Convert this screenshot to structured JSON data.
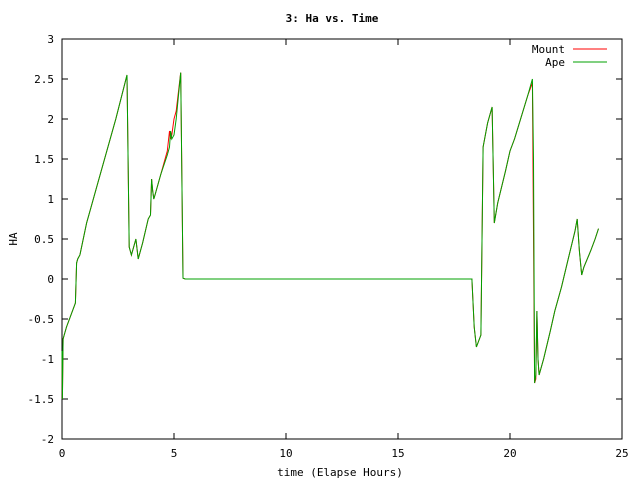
{
  "chart_data": {
    "type": "line",
    "title": "3: Ha vs. Time",
    "xlabel": "time (Elapse Hours)",
    "ylabel": "HA",
    "xlim": [
      0,
      25
    ],
    "ylim": [
      -2,
      3
    ],
    "xticks": [
      0,
      5,
      10,
      15,
      20,
      25
    ],
    "xtick_labels": [
      "0",
      "5",
      "10",
      "15",
      "20",
      "25"
    ],
    "yticks": [
      -2,
      -1.5,
      -1,
      -0.5,
      0,
      0.5,
      1,
      1.5,
      2,
      2.5,
      3
    ],
    "ytick_labels": [
      "-2",
      "-1.5",
      "-1",
      "-0.5",
      "0",
      "0.5",
      "1",
      "1.5",
      "2",
      "2.5",
      "3"
    ],
    "grid": false,
    "legend_position": "top-right",
    "series": [
      {
        "name": "Mount",
        "color": "#ff0000",
        "x": [
          0.0,
          0.02,
          0.05,
          0.1,
          0.2,
          0.6,
          0.65,
          0.7,
          0.8,
          1.1,
          1.3,
          1.6,
          2.0,
          2.4,
          2.9,
          3.0,
          3.1,
          3.3,
          3.4,
          3.6,
          3.85,
          3.95,
          4.0,
          4.05,
          4.1,
          4.15,
          4.4,
          4.7,
          4.8,
          4.85,
          4.9,
          5.0,
          5.1,
          5.3,
          5.4,
          5.5,
          6.0,
          10.0,
          15.0,
          18.3,
          18.4,
          18.5,
          18.7,
          18.8,
          19.0,
          19.2,
          19.3,
          19.45,
          19.8,
          20.0,
          20.2,
          20.8,
          21.0,
          21.1,
          21.15,
          21.2,
          21.25,
          21.3,
          21.5,
          21.8,
          22.0,
          22.3,
          22.6,
          22.9,
          23.0,
          23.1,
          23.2,
          23.3,
          23.6,
          23.8,
          23.95
        ],
        "y": [
          -0.9,
          -1.5,
          -0.75,
          -0.7,
          -0.6,
          -0.3,
          0.2,
          0.25,
          0.3,
          0.7,
          0.9,
          1.2,
          1.6,
          2.0,
          2.55,
          0.4,
          0.3,
          0.5,
          0.25,
          0.45,
          0.75,
          0.8,
          1.25,
          1.1,
          1.0,
          1.05,
          1.3,
          1.6,
          1.85,
          1.75,
          1.8,
          2.0,
          2.1,
          2.58,
          0.01,
          0.0,
          0.0,
          0.0,
          0.0,
          0.0,
          -0.6,
          -0.85,
          -0.7,
          1.65,
          1.95,
          2.15,
          0.7,
          0.95,
          1.35,
          1.6,
          1.75,
          2.3,
          2.45,
          -1.3,
          -1.25,
          -0.4,
          -1.0,
          -1.2,
          -1.0,
          -0.65,
          -0.4,
          -0.1,
          0.25,
          0.6,
          0.75,
          0.35,
          0.05,
          0.15,
          0.35,
          0.5,
          0.63
        ]
      },
      {
        "name": "Ape",
        "color": "#00a000",
        "x": [
          0.0,
          0.02,
          0.05,
          0.1,
          0.2,
          0.6,
          0.65,
          0.7,
          0.8,
          1.1,
          1.3,
          1.6,
          2.0,
          2.4,
          2.9,
          3.0,
          3.1,
          3.3,
          3.4,
          3.6,
          3.85,
          3.95,
          4.0,
          4.05,
          4.1,
          4.15,
          4.4,
          4.7,
          4.8,
          4.85,
          4.9,
          5.0,
          5.1,
          5.3,
          5.4,
          5.5,
          6.0,
          10.0,
          15.0,
          18.3,
          18.4,
          18.5,
          18.7,
          18.8,
          19.0,
          19.2,
          19.3,
          19.45,
          19.8,
          20.0,
          20.2,
          20.8,
          21.0,
          21.05,
          21.1,
          21.15,
          21.2,
          21.25,
          21.3,
          21.5,
          21.8,
          22.0,
          22.3,
          22.6,
          22.9,
          23.0,
          23.1,
          23.2,
          23.3,
          23.6,
          23.8,
          23.95
        ],
        "y": [
          -0.9,
          -1.5,
          -0.75,
          -0.7,
          -0.6,
          -0.3,
          0.2,
          0.25,
          0.3,
          0.7,
          0.9,
          1.2,
          1.6,
          2.0,
          2.55,
          0.4,
          0.3,
          0.5,
          0.25,
          0.45,
          0.75,
          0.8,
          1.25,
          1.1,
          1.0,
          1.05,
          1.3,
          1.55,
          1.65,
          1.85,
          1.75,
          1.8,
          2.0,
          2.58,
          0.01,
          0.0,
          0.0,
          0.0,
          0.0,
          0.0,
          -0.6,
          -0.85,
          -0.7,
          1.65,
          1.95,
          2.15,
          0.7,
          0.95,
          1.35,
          1.6,
          1.75,
          2.3,
          2.5,
          1.5,
          -1.3,
          -1.2,
          -0.4,
          -1.0,
          -1.2,
          -1.0,
          -0.65,
          -0.4,
          -0.1,
          0.25,
          0.6,
          0.75,
          0.35,
          0.05,
          0.15,
          0.35,
          0.5,
          0.63
        ]
      }
    ]
  }
}
